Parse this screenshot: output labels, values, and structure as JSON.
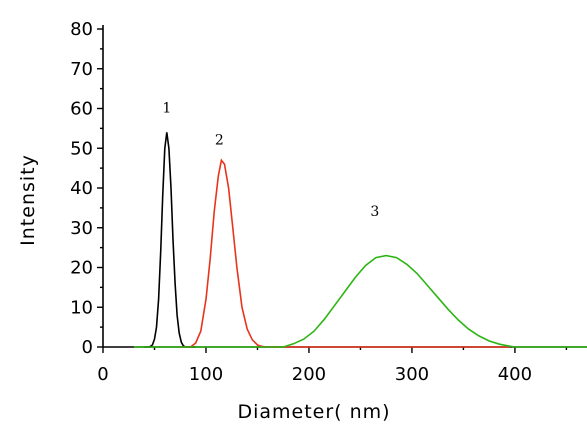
{
  "chart_data": {
    "type": "line",
    "xlabel": "Diameter(  nm)",
    "ylabel": "Intensity",
    "xlim": [
      0,
      470
    ],
    "ylim": [
      0,
      80
    ],
    "xticks": [
      0,
      100,
      200,
      300,
      400
    ],
    "yticks": [
      0,
      10,
      20,
      30,
      40,
      50,
      60,
      70,
      80
    ],
    "grid": false,
    "series": [
      {
        "color": "#000000",
        "x": [
          40,
          45,
          48,
          50,
          52,
          54,
          56,
          58,
          60,
          62,
          64,
          66,
          68,
          70,
          72,
          74,
          76,
          78,
          80,
          85,
          90
        ],
        "y": [
          0,
          0,
          0.5,
          2,
          5,
          12,
          24,
          38,
          50,
          54,
          50,
          40,
          27,
          16,
          8,
          3.5,
          1.2,
          0.3,
          0,
          0,
          0
        ]
      },
      {
        "color": "#e8341c",
        "x": [
          75,
          85,
          90,
          95,
          100,
          104,
          108,
          112,
          115,
          118,
          122,
          126,
          130,
          135,
          140,
          145,
          150,
          155,
          160,
          200,
          300,
          395
        ],
        "y": [
          0,
          0,
          1,
          4,
          12,
          22,
          34,
          43,
          47,
          46,
          40,
          30,
          20,
          10,
          4.5,
          1.8,
          0.5,
          0.1,
          0,
          0,
          0,
          0
        ]
      },
      {
        "color": "#2db514",
        "x": [
          30,
          150,
          175,
          185,
          195,
          205,
          215,
          225,
          235,
          245,
          255,
          265,
          275,
          285,
          295,
          305,
          315,
          325,
          335,
          345,
          355,
          365,
          375,
          385,
          395,
          400,
          420,
          470
        ],
        "y": [
          0,
          0,
          0,
          0.8,
          2,
          4,
          7,
          10.5,
          14,
          17.5,
          20.5,
          22.5,
          23,
          22.5,
          20.8,
          18.5,
          15.5,
          12.5,
          9.5,
          6.8,
          4.5,
          2.8,
          1.5,
          0.7,
          0.2,
          0,
          0,
          0
        ]
      }
    ],
    "annotations": [
      {
        "text": "1",
        "x": 62,
        "y": 59
      },
      {
        "text": "2",
        "x": 113,
        "y": 51
      },
      {
        "text": "3",
        "x": 264,
        "y": 33
      }
    ]
  }
}
